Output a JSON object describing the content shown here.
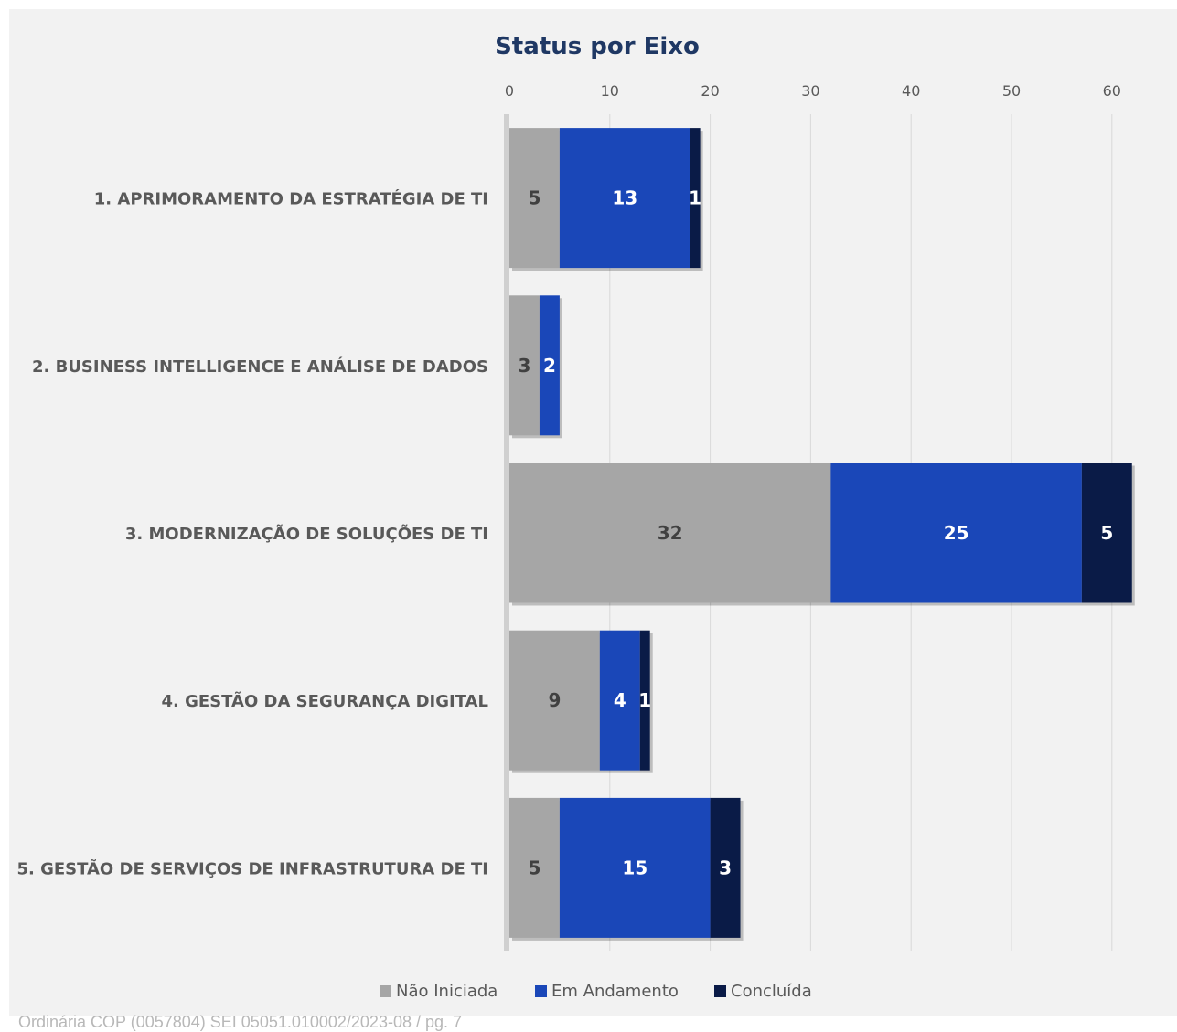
{
  "chart_data": {
    "type": "bar",
    "orientation": "horizontal",
    "stacked": true,
    "title": "Status por Eixo",
    "categories": [
      "1. APRIMORAMENTO DA ESTRATÉGIA DE TI",
      "2. BUSINESS INTELLIGENCE E ANÁLISE DE DADOS",
      "3. MODERNIZAÇÃO DE SOLUÇÕES DE TI",
      "4. GESTÃO DA SEGURANÇA DIGITAL",
      "5. GESTÃO DE SERVIÇOS DE INFRASTRUTURA DE TI"
    ],
    "series": [
      {
        "name": "Não Iniciada",
        "color": "#a6a6a6",
        "label_color": "#404040",
        "values": [
          5,
          3,
          32,
          9,
          5
        ]
      },
      {
        "name": "Em Andamento",
        "color": "#1a47b8",
        "label_color": "#ffffff",
        "values": [
          13,
          2,
          25,
          4,
          15
        ]
      },
      {
        "name": "Concluída",
        "color": "#0a1b47",
        "label_color": "#ffffff",
        "values": [
          1,
          0,
          5,
          1,
          3
        ]
      }
    ],
    "xlim": [
      0,
      65
    ],
    "xticks": [
      0,
      10,
      20,
      30,
      40,
      50,
      60
    ],
    "axis_position": "top",
    "grid": true,
    "legend_position": "bottom"
  },
  "footer_text": "Ordinária COP (0057804)      SEI 05051.010002/2023-08 / pg. 7"
}
